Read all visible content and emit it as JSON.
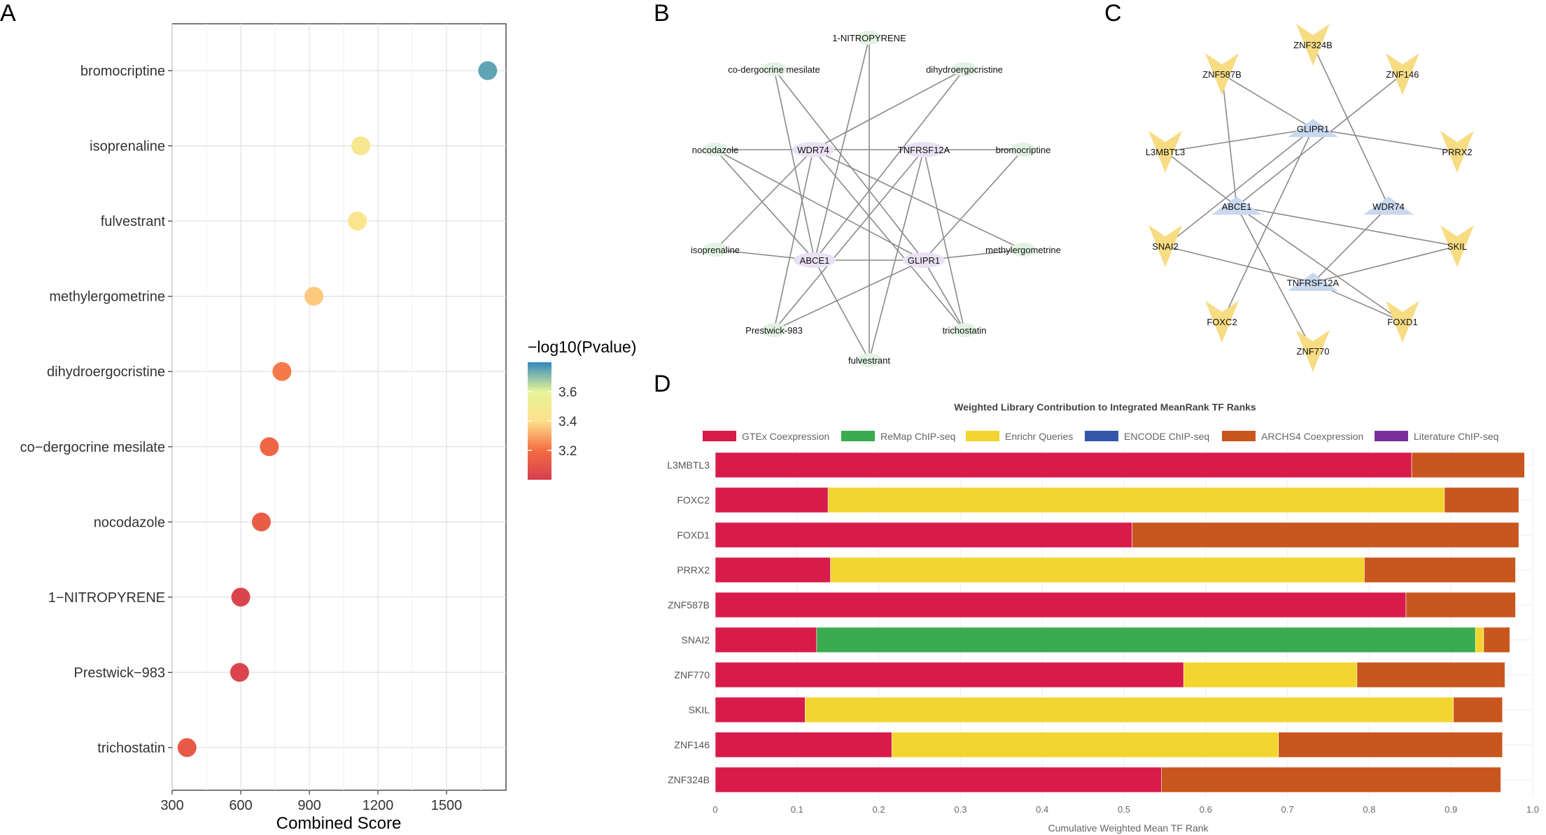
{
  "panel_labels": {
    "a": "A",
    "b": "B",
    "c": "C",
    "d": "D"
  },
  "chart_data": [
    {
      "type": "scatter",
      "panel": "A",
      "title": "",
      "xlabel": "Combined Score",
      "ylabel": "",
      "xlim": [
        300,
        1760
      ],
      "xticks": [
        300,
        600,
        900,
        1200,
        1500
      ],
      "categories": [
        "bromocriptine",
        "isoprenaline",
        "fulvestrant",
        "methylergometrine",
        "dihydroergocristine",
        "co−dergocrine mesilate",
        "nocodazole",
        "1−NITROPYRENE",
        "Prestwick−983",
        "trichostatin"
      ],
      "x": [
        1680,
        1125,
        1110,
        920,
        780,
        725,
        690,
        600,
        595,
        365
      ],
      "color_values": [
        3.75,
        3.47,
        3.45,
        3.36,
        3.22,
        3.17,
        3.13,
        3.03,
        3.03,
        3.12
      ],
      "colorbar": {
        "title": "−log10(Pvalue)",
        "ticks": [
          "3.2",
          "3.4",
          "3.6"
        ],
        "min": 3.0,
        "max": 3.8
      },
      "colors": {
        "low": "#d53e4f",
        "mid": "#fee08b",
        "high": "#3288bd"
      }
    },
    {
      "type": "bar",
      "panel": "D",
      "stacked": true,
      "orientation": "horizontal",
      "title": "Weighted Library Contribution to Integrated MeanRank TF Ranks",
      "xlabel": "Cumulative Weighted Mean TF Rank",
      "ylabel": "",
      "xlim": [
        0,
        1.0
      ],
      "xticks": [
        "0",
        "0.1",
        "0.2",
        "0.3",
        "0.4",
        "0.5",
        "0.6",
        "0.7",
        "0.8",
        "0.9",
        "1.0"
      ],
      "categories": [
        "L3MBTL3",
        "FOXC2",
        "FOXD1",
        "PRRX2",
        "ZNF587B",
        "SNAI2",
        "ZNF770",
        "SKIL",
        "ZNF146",
        "ZNF324B"
      ],
      "series": [
        {
          "name": "GTEx Coexpression",
          "color": "#d81b4a",
          "values": [
            0.852,
            0.138,
            0.51,
            0.141,
            0.845,
            0.124,
            0.573,
            0.11,
            0.216,
            0.546
          ]
        },
        {
          "name": "ReMap ChIP-seq",
          "color": "#3aab4e",
          "values": [
            0,
            0,
            0,
            0,
            0,
            0.806,
            0,
            0,
            0,
            0
          ]
        },
        {
          "name": "Enrichr Queries",
          "color": "#f2d52e",
          "values": [
            0,
            0.754,
            0,
            0.653,
            0,
            0.01,
            0.212,
            0.793,
            0.473,
            0
          ]
        },
        {
          "name": "ENCODE ChIP-seq",
          "color": "#3355aa",
          "values": [
            0,
            0,
            0,
            0,
            0,
            0,
            0,
            0,
            0,
            0
          ]
        },
        {
          "name": "ARCHS4 Coexpression",
          "color": "#c8561e",
          "values": [
            0.138,
            0.091,
            0.473,
            0.185,
            0.134,
            0.032,
            0.181,
            0.06,
            0.274,
            0.415
          ]
        },
        {
          "name": "Literature ChIP-seq",
          "color": "#7b2e9b",
          "values": [
            0,
            0,
            0,
            0,
            0,
            0,
            0,
            0,
            0,
            0
          ]
        }
      ]
    }
  ],
  "network_b": {
    "nodes": [
      {
        "id": "WDR74",
        "label": "WDR74",
        "kind": "gene"
      },
      {
        "id": "TNFRSF12A",
        "label": "TNFRSF12A",
        "kind": "gene"
      },
      {
        "id": "ABCE1",
        "label": "ABCE1",
        "kind": "gene"
      },
      {
        "id": "GLIPR1",
        "label": "GLIPR1",
        "kind": "gene"
      },
      {
        "id": "1-NITROPYRENE",
        "label": "1-NITROPYRENE",
        "kind": "drug"
      },
      {
        "id": "co-dergocrine mesilate",
        "label": "co-dergocrine mesilate",
        "kind": "drug"
      },
      {
        "id": "dihydroergocristine",
        "label": "dihydroergocristine",
        "kind": "drug"
      },
      {
        "id": "nocodazole",
        "label": "nocodazole",
        "kind": "drug"
      },
      {
        "id": "bromocriptine",
        "label": "bromocriptine",
        "kind": "drug"
      },
      {
        "id": "isoprenaline",
        "label": "isoprenaline",
        "kind": "drug"
      },
      {
        "id": "methylergometrine",
        "label": "methylergometrine",
        "kind": "drug"
      },
      {
        "id": "Prestwick-983",
        "label": "Prestwick-983",
        "kind": "drug"
      },
      {
        "id": "trichostatin",
        "label": "trichostatin",
        "kind": "drug"
      },
      {
        "id": "fulvestrant",
        "label": "fulvestrant",
        "kind": "drug"
      }
    ],
    "edges": [
      [
        "nocodazole",
        "WDR74"
      ],
      [
        "WDR74",
        "TNFRSF12A"
      ],
      [
        "TNFRSF12A",
        "bromocriptine"
      ],
      [
        "isoprenaline",
        "ABCE1"
      ],
      [
        "ABCE1",
        "GLIPR1"
      ],
      [
        "GLIPR1",
        "methylergometrine"
      ],
      [
        "co-dergocrine mesilate",
        "ABCE1"
      ],
      [
        "co-dergocrine mesilate",
        "GLIPR1"
      ],
      [
        "1-NITROPYRENE",
        "ABCE1"
      ],
      [
        "1-NITROPYRENE",
        "fulvestrant"
      ],
      [
        "dihydroergocristine",
        "WDR74"
      ],
      [
        "dihydroergocristine",
        "ABCE1"
      ],
      [
        "WDR74",
        "Prestwick-983"
      ],
      [
        "WDR74",
        "isoprenaline"
      ],
      [
        "WDR74",
        "methylergometrine"
      ],
      [
        "WDR74",
        "trichostatin"
      ],
      [
        "TNFRSF12A",
        "Prestwick-983"
      ],
      [
        "TNFRSF12A",
        "fulvestrant"
      ],
      [
        "TNFRSF12A",
        "trichostatin"
      ],
      [
        "ABCE1",
        "nocodazole"
      ],
      [
        "ABCE1",
        "fulvestrant"
      ],
      [
        "GLIPR1",
        "bromocriptine"
      ],
      [
        "GLIPR1",
        "Prestwick-983"
      ],
      [
        "GLIPR1",
        "nocodazole"
      ],
      [
        "GLIPR1",
        "trichostatin"
      ]
    ]
  },
  "network_c": {
    "nodes": [
      {
        "id": "GLIPR1",
        "label": "GLIPR1",
        "kind": "gene"
      },
      {
        "id": "ABCE1",
        "label": "ABCE1",
        "kind": "gene"
      },
      {
        "id": "WDR74",
        "label": "WDR74",
        "kind": "gene"
      },
      {
        "id": "TNFRSF12A",
        "label": "TNFRSF12A",
        "kind": "gene"
      },
      {
        "id": "ZNF324B",
        "label": "ZNF324B",
        "kind": "tf"
      },
      {
        "id": "ZNF587B",
        "label": "ZNF587B",
        "kind": "tf"
      },
      {
        "id": "ZNF146",
        "label": "ZNF146",
        "kind": "tf"
      },
      {
        "id": "L3MBTL3",
        "label": "L3MBTL3",
        "kind": "tf"
      },
      {
        "id": "PRRX2",
        "label": "PRRX2",
        "kind": "tf"
      },
      {
        "id": "SNAI2",
        "label": "SNAI2",
        "kind": "tf"
      },
      {
        "id": "SKIL",
        "label": "SKIL",
        "kind": "tf"
      },
      {
        "id": "FOXC2",
        "label": "FOXC2",
        "kind": "tf"
      },
      {
        "id": "FOXD1",
        "label": "FOXD1",
        "kind": "tf"
      },
      {
        "id": "ZNF770",
        "label": "ZNF770",
        "kind": "tf"
      }
    ],
    "edges": [
      [
        "ZNF587B",
        "GLIPR1"
      ],
      [
        "L3MBTL3",
        "GLIPR1"
      ],
      [
        "GLIPR1",
        "PRRX2"
      ],
      [
        "GLIPR1",
        "SNAI2"
      ],
      [
        "GLIPR1",
        "FOXC2"
      ],
      [
        "ZNF146",
        "ABCE1"
      ],
      [
        "ZNF587B",
        "ABCE1"
      ],
      [
        "L3MBTL3",
        "ABCE1"
      ],
      [
        "ABCE1",
        "SKIL"
      ],
      [
        "ABCE1",
        "ZNF770"
      ],
      [
        "ABCE1",
        "FOXD1"
      ],
      [
        "ZNF324B",
        "WDR74"
      ],
      [
        "WDR74",
        "TNFRSF12A"
      ],
      [
        "SNAI2",
        "TNFRSF12A"
      ],
      [
        "TNFRSF12A",
        "SKIL"
      ],
      [
        "TNFRSF12A",
        "FOXD1"
      ]
    ]
  }
}
